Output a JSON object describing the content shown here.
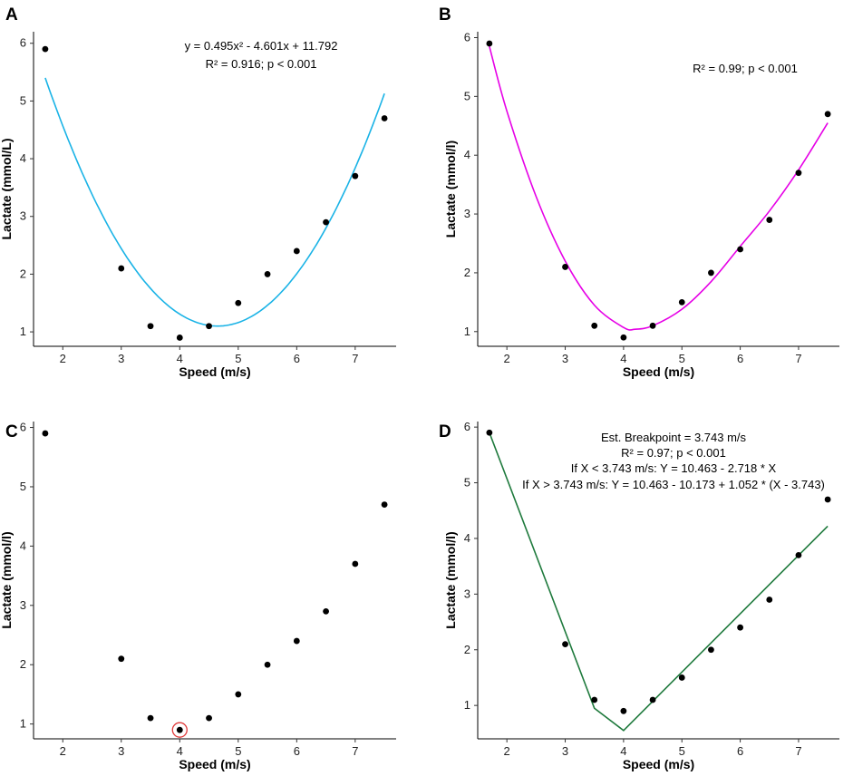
{
  "chart_data": [
    {
      "panel": "A",
      "type": "scatter",
      "x": [
        1.7,
        3.0,
        3.5,
        4.0,
        4.5,
        5.0,
        5.5,
        6.0,
        6.5,
        7.0,
        7.5
      ],
      "y": [
        5.9,
        2.1,
        1.1,
        0.9,
        1.1,
        1.5,
        2.0,
        2.4,
        2.9,
        3.7,
        4.7
      ],
      "fit": {
        "kind": "quadratic",
        "a": 0.495,
        "b": -4.601,
        "c": 11.792,
        "color": "#1ab3e6"
      },
      "annotations": [
        "y = 0.495x² - 4.601x + 11.792",
        "R² = 0.916; p < 0.001"
      ],
      "xlabel": "Speed (m/s)",
      "ylabel": "Lactate (mmol/L)",
      "xlim": [
        1.5,
        7.7
      ],
      "ylim": [
        0.75,
        6.2
      ],
      "xticks": [
        2,
        3,
        4,
        5,
        6,
        7
      ],
      "yticks": [
        1,
        2,
        3,
        4,
        5,
        6
      ]
    },
    {
      "panel": "B",
      "type": "scatter",
      "x": [
        1.7,
        3.0,
        3.5,
        4.0,
        4.5,
        5.0,
        5.5,
        6.0,
        6.5,
        7.0,
        7.5
      ],
      "y": [
        5.9,
        2.1,
        1.1,
        0.9,
        1.1,
        1.5,
        2.0,
        2.4,
        2.9,
        3.7,
        4.7
      ],
      "fit": {
        "kind": "smooth",
        "color": "#e600e6",
        "x": [
          1.7,
          2.0,
          2.5,
          3.0,
          3.5,
          4.0,
          4.2,
          4.5,
          5.0,
          5.5,
          6.0,
          6.5,
          7.0,
          7.5
        ],
        "y": [
          5.85,
          4.75,
          3.3,
          2.2,
          1.45,
          1.07,
          1.04,
          1.1,
          1.38,
          1.85,
          2.45,
          3.05,
          3.75,
          4.55
        ]
      },
      "annotations": [
        "R² = 0.99; p < 0.001"
      ],
      "xlabel": "Speed (m/s)",
      "ylabel": "Lactate (mmol/l)",
      "xlim": [
        1.5,
        7.7
      ],
      "ylim": [
        0.75,
        6.1
      ],
      "xticks": [
        2,
        3,
        4,
        5,
        6,
        7
      ],
      "yticks": [
        1,
        2,
        3,
        4,
        5,
        6
      ]
    },
    {
      "panel": "C",
      "type": "scatter",
      "x": [
        1.7,
        3.0,
        3.5,
        4.0,
        4.5,
        5.0,
        5.5,
        6.0,
        6.5,
        7.0,
        7.5
      ],
      "y": [
        5.9,
        2.1,
        1.1,
        0.9,
        1.1,
        1.5,
        2.0,
        2.4,
        2.9,
        3.7,
        4.7
      ],
      "highlight": {
        "x": 4.0,
        "y": 0.9,
        "color": "#e03a3a"
      },
      "annotations": [],
      "xlabel": "Speed (m/s)",
      "ylabel": "Lactate (mmol/l)",
      "xlim": [
        1.5,
        7.7
      ],
      "ylim": [
        0.75,
        6.1
      ],
      "xticks": [
        2,
        3,
        4,
        5,
        6,
        7
      ],
      "yticks": [
        1,
        2,
        3,
        4,
        5,
        6
      ]
    },
    {
      "panel": "D",
      "type": "scatter",
      "x": [
        1.7,
        3.0,
        3.5,
        4.0,
        4.5,
        5.0,
        5.5,
        6.0,
        6.5,
        7.0,
        7.5
      ],
      "y": [
        5.9,
        2.1,
        1.1,
        0.9,
        1.1,
        1.5,
        2.0,
        2.4,
        2.9,
        3.7,
        4.7
      ],
      "fit": {
        "kind": "polyline",
        "color": "#1f7a3d",
        "x": [
          1.7,
          3.5,
          4.0,
          7.5
        ],
        "y": [
          5.9,
          0.95,
          0.55,
          4.22
        ]
      },
      "annotations": [
        "Est. Breakpoint = 3.743 m/s",
        "R² = 0.97; p < 0.001",
        "If X < 3.743 m/s: Y = 10.463 - 2.718 * X",
        "If X > 3.743 m/s: Y = 10.463 - 10.173 + 1.052 * (X - 3.743)"
      ],
      "xlabel": "Speed (m/s)",
      "ylabel": "Lactate (mmol/l)",
      "xlim": [
        1.5,
        7.7
      ],
      "ylim": [
        0.4,
        6.1
      ],
      "xticks": [
        2,
        3,
        4,
        5,
        6,
        7
      ],
      "yticks": [
        1,
        2,
        3,
        4,
        5,
        6
      ]
    }
  ]
}
